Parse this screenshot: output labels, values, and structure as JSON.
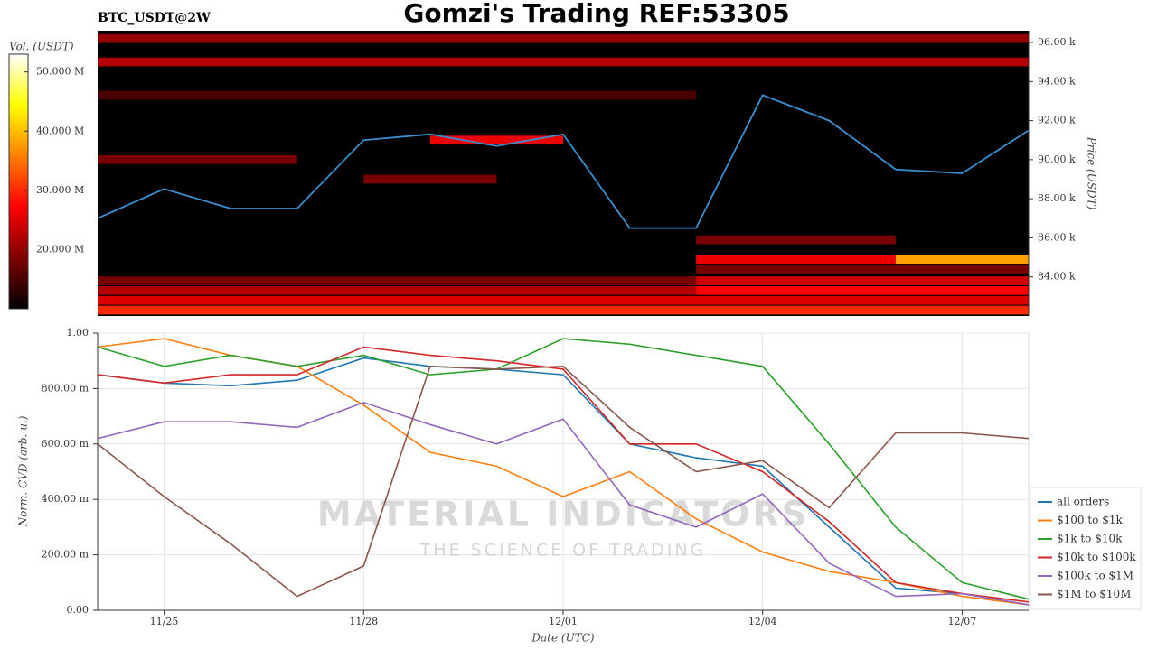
{
  "title": "Gomzi's Trading REF:53305",
  "watermark": {
    "title": "MATERIAL INDICATORS",
    "subtitle": "THE SCIENCE OF TRADING"
  },
  "chart_data": [
    {
      "type": "heatmap",
      "subtitle": "BTC_USDT@2W",
      "y_label": "Price (USDT)",
      "xlim": [
        "11/24",
        "12/08"
      ],
      "ylim": [
        82000,
        96600
      ],
      "yticks": [
        {
          "value": 84000,
          "label": "84.00 k"
        },
        {
          "value": 86000,
          "label": "86.00 k"
        },
        {
          "value": 88000,
          "label": "88.00 k"
        },
        {
          "value": 90000,
          "label": "90.00 k"
        },
        {
          "value": 92000,
          "label": "92.00 k"
        },
        {
          "value": 94000,
          "label": "94.00 k"
        },
        {
          "value": 96000,
          "label": "96.00 k"
        }
      ],
      "x": [
        "11/24",
        "11/25",
        "11/26",
        "11/27",
        "11/28",
        "11/29",
        "11/30",
        "12/01",
        "12/02",
        "12/03",
        "12/04",
        "12/05",
        "12/06",
        "12/07",
        "12/08"
      ],
      "price": {
        "color": "#3a8fd0",
        "values": [
          87000,
          88500,
          87500,
          87500,
          91000,
          91300,
          90700,
          91300,
          86500,
          86500,
          93300,
          92000,
          89500,
          89300,
          91500
        ]
      },
      "colorbar": {
        "label": "Vol. (USDT)",
        "lim": [
          10000000,
          53000000
        ],
        "ticks": [
          {
            "value": 20000000,
            "label": "20.000 M"
          },
          {
            "value": 30000000,
            "label": "30.000 M"
          },
          {
            "value": 40000000,
            "label": "40.000 M"
          },
          {
            "value": 50000000,
            "label": "50.000 M"
          }
        ]
      },
      "bands": [
        {
          "price": 82300,
          "from": "11/24",
          "to": "12/08",
          "volume": 30000000
        },
        {
          "price": 82800,
          "from": "11/24",
          "to": "12/08",
          "volume": 25000000
        },
        {
          "price": 83300,
          "from": "11/24",
          "to": "12/03",
          "volume": 22000000
        },
        {
          "price": 83300,
          "from": "12/03",
          "to": "12/08",
          "volume": 27000000
        },
        {
          "price": 83800,
          "from": "11/24",
          "to": "12/03",
          "volume": 18000000
        },
        {
          "price": 83800,
          "from": "12/03",
          "to": "12/08",
          "volume": 24000000
        },
        {
          "price": 84400,
          "from": "12/03",
          "to": "12/08",
          "volume": 18000000
        },
        {
          "price": 84900,
          "from": "12/03",
          "to": "12/06",
          "volume": 26000000
        },
        {
          "price": 84900,
          "from": "12/06",
          "to": "12/08",
          "volume": 38000000
        },
        {
          "price": 85900,
          "from": "12/03",
          "to": "12/06",
          "volume": 18000000
        },
        {
          "price": 89000,
          "from": "11/28",
          "to": "11/30",
          "volume": 18000000
        },
        {
          "price": 90000,
          "from": "11/24",
          "to": "11/27",
          "volume": 18000000
        },
        {
          "price": 91000,
          "from": "11/29",
          "to": "12/01",
          "volume": 26000000
        },
        {
          "price": 93300,
          "from": "11/24",
          "to": "12/03",
          "volume": 15000000
        },
        {
          "price": 95000,
          "from": "11/24",
          "to": "12/08",
          "volume": 22000000
        },
        {
          "price": 96200,
          "from": "11/24",
          "to": "12/08",
          "volume": 20000000
        }
      ]
    },
    {
      "type": "line",
      "x_label": "Date (UTC)",
      "y_label": "Norm. CVD (arb. u.)",
      "grid": true,
      "legend": "right",
      "xlim": [
        "11/24",
        "12/08"
      ],
      "ylim": [
        0,
        1
      ],
      "yticks": [
        {
          "value": 0,
          "label": "0.00"
        },
        {
          "value": 0.2,
          "label": "200.00 m"
        },
        {
          "value": 0.4,
          "label": "400.00 m"
        },
        {
          "value": 0.6,
          "label": "600.00 m"
        },
        {
          "value": 0.8,
          "label": "800.00 m"
        },
        {
          "value": 1,
          "label": "1.00"
        }
      ],
      "xticks": [
        "11/25",
        "11/28",
        "12/01",
        "12/04",
        "12/07"
      ],
      "x": [
        "11/24",
        "11/25",
        "11/26",
        "11/27",
        "11/28",
        "11/29",
        "11/30",
        "12/01",
        "12/02",
        "12/03",
        "12/04",
        "12/05",
        "12/06",
        "12/07",
        "12/08"
      ],
      "series": [
        {
          "name": "all orders",
          "color": "#1f77b4",
          "values": [
            0.85,
            0.82,
            0.81,
            0.83,
            0.91,
            0.88,
            0.87,
            0.85,
            0.6,
            0.55,
            0.52,
            0.3,
            0.08,
            0.06,
            0.02
          ]
        },
        {
          "name": "$100 to $1k",
          "color": "#ff7f0e",
          "values": [
            0.95,
            0.98,
            0.92,
            0.88,
            0.74,
            0.57,
            0.52,
            0.41,
            0.5,
            0.33,
            0.21,
            0.14,
            0.1,
            0.05,
            0.02
          ]
        },
        {
          "name": "$1k to $10k",
          "color": "#2ca02c",
          "values": [
            0.95,
            0.88,
            0.92,
            0.88,
            0.92,
            0.85,
            0.87,
            0.98,
            0.96,
            0.92,
            0.88,
            0.6,
            0.3,
            0.1,
            0.04
          ]
        },
        {
          "name": "$10k to $100k",
          "color": "#d62728",
          "values": [
            0.85,
            0.82,
            0.85,
            0.85,
            0.95,
            0.92,
            0.9,
            0.87,
            0.6,
            0.6,
            0.5,
            0.32,
            0.1,
            0.06,
            0.03
          ]
        },
        {
          "name": "$100k to $1M",
          "color": "#9467bd",
          "values": [
            0.62,
            0.68,
            0.68,
            0.66,
            0.75,
            0.67,
            0.6,
            0.69,
            0.38,
            0.3,
            0.42,
            0.17,
            0.05,
            0.06,
            0.02
          ]
        },
        {
          "name": "$1M to $10M",
          "color": "#8c564b",
          "values": [
            0.6,
            0.41,
            0.24,
            0.05,
            0.16,
            0.88,
            0.87,
            0.88,
            0.66,
            0.5,
            0.54,
            0.37,
            0.64,
            0.64,
            0.62
          ]
        }
      ]
    }
  ]
}
